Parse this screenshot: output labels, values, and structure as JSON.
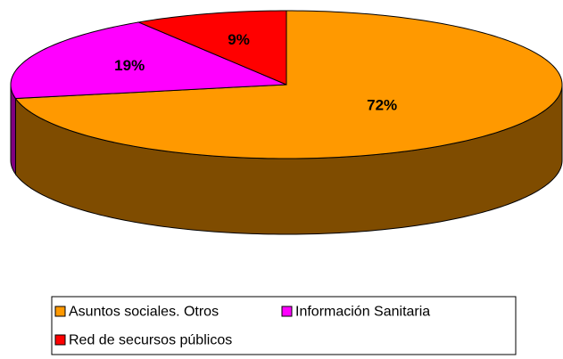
{
  "chart_data": {
    "type": "pie",
    "categories": [
      "Asuntos sociales. Otros",
      "Información Sanitaria",
      "Red de secursos públicos"
    ],
    "values": [
      72,
      19,
      9
    ],
    "value_labels": [
      "72%",
      "19%",
      "9%"
    ],
    "colors": [
      "#ff9900",
      "#ff00ff",
      "#ff0000"
    ],
    "side_colors": [
      "#7f4c00",
      "#800080",
      "#800000"
    ],
    "legend": "bottom"
  }
}
